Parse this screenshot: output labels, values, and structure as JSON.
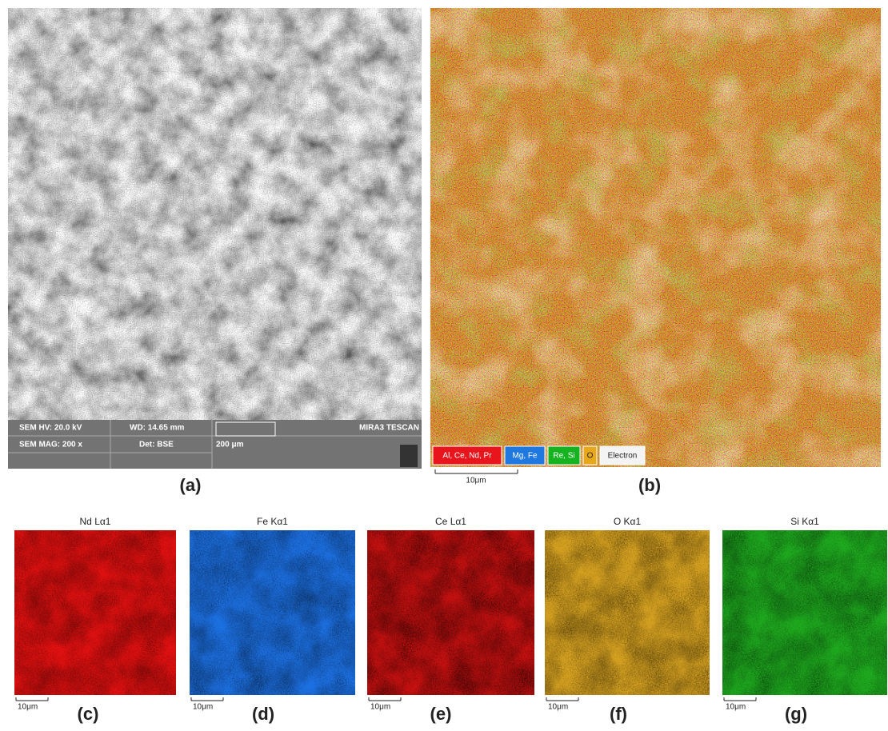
{
  "panel_a": {
    "label": "(a)",
    "info": {
      "hv": "SEM HV: 20.0 kV",
      "wd": "WD: 14.65 mm",
      "mag": "SEM MAG: 200 x",
      "det": "Det: BSE",
      "scale": "200 μm",
      "instrument": "MIRA3 TESCAN"
    }
  },
  "panel_b": {
    "label": "(b)",
    "legend": [
      "Al, Ce, Nd, Pr",
      "Mg, Fe",
      "Re, Si",
      "O",
      "Electron"
    ],
    "scale": "10μm"
  },
  "maps": [
    {
      "title": "Nd Lα1",
      "scale": "10μm",
      "label": "(c)"
    },
    {
      "title": "Fe Kα1",
      "scale": "10μm",
      "label": "(d)"
    },
    {
      "title": "Ce Lα1",
      "scale": "10μm",
      "label": "(e)"
    },
    {
      "title": "O Kα1",
      "scale": "10μm",
      "label": "(f)"
    },
    {
      "title": "Si Kα1",
      "scale": "10μm",
      "label": "(g)"
    }
  ]
}
